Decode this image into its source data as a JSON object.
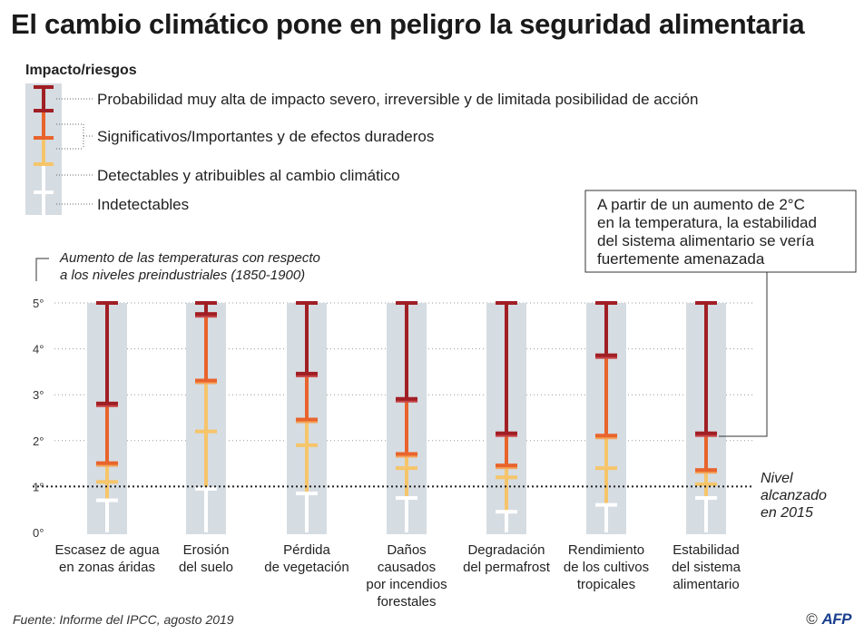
{
  "title": "El cambio climático pone en peligro la seguridad alimentaria",
  "legend": {
    "title": "Impacto/riesgos",
    "items": [
      {
        "label": "Probabilidad muy alta de impacto severo, irreversible y de limitada posibilidad de acción",
        "color": "#a01f24"
      },
      {
        "label": "Significativos/Importantes y de efectos duraderos",
        "color": "#e8642c"
      },
      {
        "label": "Detectables y atribuibles al cambio climático",
        "color": "#f6c56a"
      },
      {
        "label": "Indetectables",
        "color": "#ffffff"
      }
    ]
  },
  "annotation": "A partir de un aumento de 2°C en la temperatura, la estabilidad del sistema alimentario se vería fuertemente amenazada",
  "reference_label": "Nivel alcanzado en 2015",
  "source": "Fuente: Informe del IPCC, agosto 2019",
  "credit": {
    "symbol": "©",
    "brand": "AFP"
  },
  "colors": {
    "high": "#a01f24",
    "significant": "#e8642c",
    "detectable": "#f6c56a",
    "undetectable": "#ffffff",
    "column_bg": "#d5dce2"
  },
  "chart_data": {
    "type": "bar",
    "ylabel": "Aumento de las temperaturas con respecto a los niveles preindustriales (1850-1900)",
    "ylim": [
      0,
      5
    ],
    "yticks": [
      "0°",
      "1°",
      "2°",
      "3°",
      "4°",
      "5°"
    ],
    "reference_line": 1.0,
    "categories": [
      "Escasez de agua en zonas áridas",
      "Erosión del suelo",
      "Pérdida de vegetación",
      "Daños causados por incendios forestales",
      "Degradación del permafrost",
      "Rendimiento de los cultivos tropicales",
      "Estabilidad del sistema alimentario"
    ],
    "series": [
      {
        "name": "Indetectables",
        "segments": [
          [
            0,
            0.7
          ],
          [
            0,
            0.95
          ],
          [
            0,
            0.85
          ],
          [
            0,
            0.75
          ],
          [
            0,
            0.45
          ],
          [
            0,
            0.6
          ],
          [
            0,
            0.75
          ]
        ]
      },
      {
        "name": "Detectables y atribuibles al cambio climático",
        "segments": [
          [
            0.7,
            1.5
          ],
          [
            0.95,
            3.3
          ],
          [
            0.85,
            2.45
          ],
          [
            0.75,
            1.7
          ],
          [
            0.45,
            1.45
          ],
          [
            0.6,
            2.1
          ],
          [
            0.75,
            1.35
          ]
        ]
      },
      {
        "name": "Significativos/Importantes y de efectos duraderos",
        "segments": [
          [
            1.5,
            2.8
          ],
          [
            3.3,
            4.75
          ],
          [
            2.45,
            3.45
          ],
          [
            1.7,
            2.9
          ],
          [
            1.45,
            2.15
          ],
          [
            2.1,
            3.85
          ],
          [
            1.35,
            2.15
          ]
        ]
      },
      {
        "name": "Probabilidad muy alta de impacto severo, irreversible y de limitada posibilidad de acción",
        "segments": [
          [
            2.8,
            5
          ],
          [
            4.75,
            5
          ],
          [
            3.45,
            5
          ],
          [
            2.9,
            5
          ],
          [
            2.15,
            5
          ],
          [
            3.85,
            5
          ],
          [
            2.15,
            5
          ]
        ]
      }
    ],
    "ticks": [
      [
        0.7,
        1.1,
        1.5,
        2.8,
        5
      ],
      [
        0.95,
        2.2,
        3.3,
        4.75,
        5
      ],
      [
        0.85,
        1.9,
        2.45,
        3.45,
        5
      ],
      [
        0.75,
        1.4,
        1.7,
        2.9,
        5
      ],
      [
        0.45,
        1.2,
        1.45,
        2.15,
        5
      ],
      [
        0.6,
        1.4,
        2.1,
        3.85,
        5
      ],
      [
        0.75,
        1.05,
        1.35,
        2.15,
        5
      ]
    ]
  }
}
